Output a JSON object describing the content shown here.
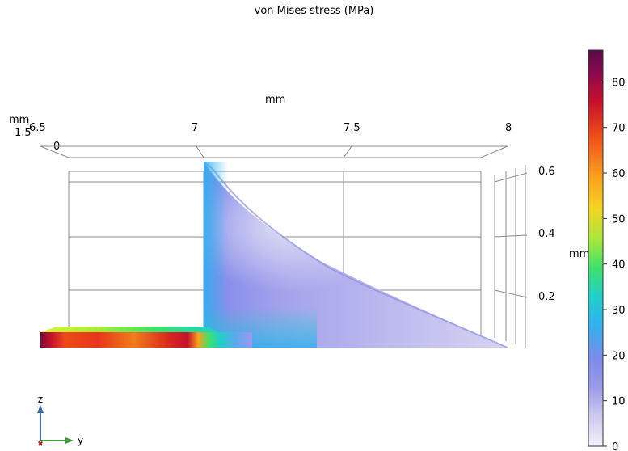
{
  "chart_data": {
    "type": "heatmap",
    "title": "von Mises stress (MPa)",
    "y_axis": {
      "unit_label": "mm",
      "ticks": [
        "6.5",
        "7",
        "7.5",
        "8"
      ],
      "range": [
        6.5,
        8
      ]
    },
    "z_axis": {
      "unit_label": "mm",
      "ticks": [
        "0.6",
        "0.4",
        "0.2"
      ],
      "range": [
        0,
        0.6
      ]
    },
    "x_axis": {
      "unit_label": "mm",
      "ticks": [
        "1.5",
        "0"
      ]
    },
    "colorbar": {
      "label": "",
      "range": [
        0,
        87
      ],
      "ticks": [
        "0",
        "10",
        "20",
        "30",
        "40",
        "50",
        "60",
        "70",
        "80"
      ],
      "tick_values": [
        0,
        10,
        20,
        30,
        40,
        50,
        60,
        70,
        80
      ],
      "colors": [
        "#f3f1f8",
        "#c9c7ee",
        "#9a99ea",
        "#7b8be8",
        "#2fb2ee",
        "#1fd0c8",
        "#3ee06a",
        "#a5e83a",
        "#f5d421",
        "#f9a01e",
        "#f0501a",
        "#c8102a",
        "#8b0a4d",
        "#5b0a4a"
      ]
    },
    "triad": {
      "axis1": "z",
      "axis2": "y"
    }
  }
}
